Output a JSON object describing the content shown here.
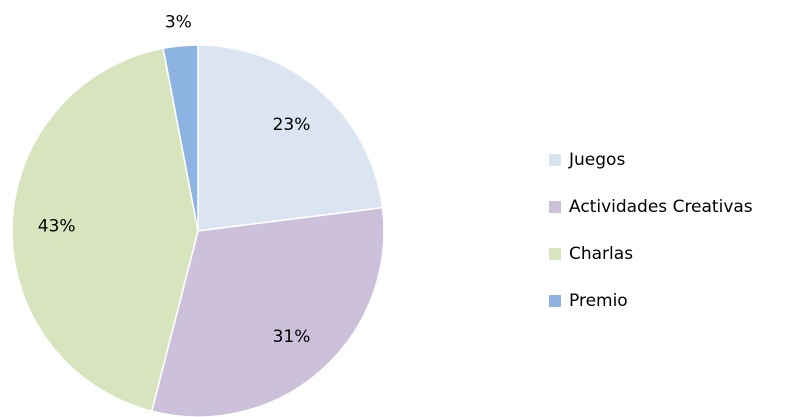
{
  "chart_data": {
    "type": "pie",
    "categories": [
      "Juegos",
      "Actividades Creativas",
      "Charlas",
      "Premio"
    ],
    "values": [
      23,
      31,
      43,
      3
    ],
    "value_labels": [
      "23%",
      "31%",
      "43%",
      "3%"
    ],
    "colors": [
      "#dbe5f1",
      "#ccc0da",
      "#d7e4bd",
      "#8db3e2"
    ],
    "legend": "right"
  }
}
